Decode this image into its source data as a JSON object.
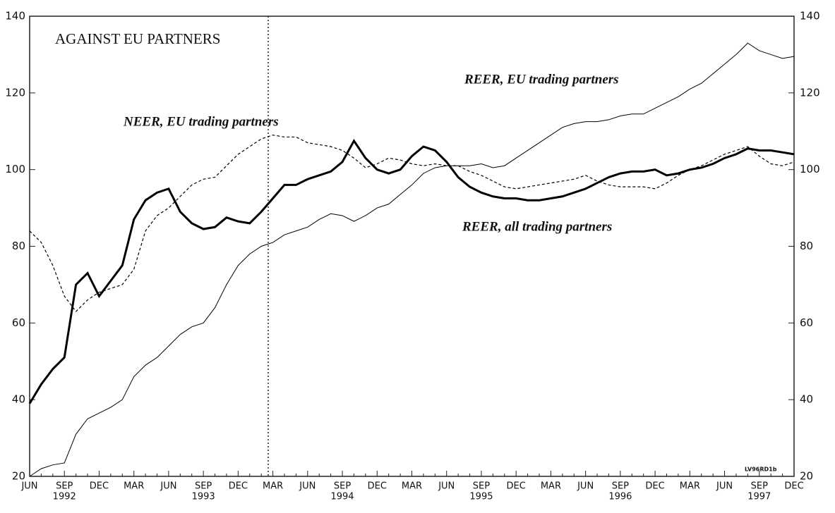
{
  "chart_data": {
    "type": "line",
    "title": "AGAINST EU PARTNERS",
    "annotations": [
      "REER, EU trading partners",
      "NEER, EU trading partners",
      "REER, all trading partners",
      "LV96RD1b"
    ],
    "categories": [
      "JUN",
      null,
      null,
      "SEP",
      null,
      null,
      "DEC",
      null,
      null,
      "MAR",
      null,
      null,
      "JUN",
      null,
      null,
      "SEP",
      null,
      null,
      "DEC",
      null,
      null,
      "MAR",
      null,
      null,
      "JUN",
      null,
      null,
      "SEP",
      null,
      null,
      "DEC",
      null,
      null,
      "MAR",
      null,
      null,
      "JUN",
      null,
      null,
      "SEP",
      null,
      null,
      "DEC",
      null,
      null,
      "MAR",
      null,
      null,
      "JUN",
      null,
      null,
      "SEP",
      null,
      null,
      "DEC",
      null,
      null,
      "MAR",
      null,
      null,
      "JUN",
      null,
      null,
      "SEP",
      null,
      null,
      "DEC"
    ],
    "years": [
      "1992",
      "1993",
      "1994",
      "1995",
      "1996",
      "1997"
    ],
    "series": [
      {
        "name": "REER, all trading partners",
        "color": "#000000",
        "width": 3,
        "dash": "solid",
        "values": [
          39,
          44,
          48,
          51,
          70,
          73,
          67,
          71,
          75,
          87,
          92,
          94,
          95,
          89,
          86,
          84.5,
          85,
          87.5,
          86.5,
          86,
          89,
          92.5,
          96,
          96,
          97.5,
          98.5,
          99.5,
          102,
          107.5,
          103,
          100,
          99,
          100,
          103.5,
          106,
          105,
          102,
          98,
          95.5,
          94,
          93,
          92.5,
          92.5,
          92,
          92,
          92.5,
          93,
          94,
          95,
          96.5,
          98,
          99,
          99.5,
          99.5,
          100,
          98.5,
          99,
          100,
          100.5,
          101.5,
          103,
          104,
          105.5,
          105,
          105,
          104.5,
          104
        ]
      },
      {
        "name": "NEER, EU trading partners",
        "color": "#000000",
        "width": 1.2,
        "dash": "dashed",
        "values": [
          84,
          81,
          75,
          67,
          63,
          66,
          68,
          69,
          70,
          74,
          84,
          88,
          90,
          93,
          96,
          97.5,
          98,
          101,
          104,
          106,
          108,
          109,
          108.5,
          108.5,
          107,
          106.5,
          106,
          105,
          103,
          100.5,
          101.5,
          103,
          102.5,
          101.5,
          101,
          101.5,
          101,
          101,
          99.5,
          98.5,
          97,
          95.5,
          95,
          95.5,
          96,
          96.5,
          97,
          97.5,
          98.5,
          97,
          96,
          95.5,
          95.5,
          95.5,
          95,
          96.5,
          98.5,
          100,
          101,
          102.5,
          104,
          105,
          106,
          103.5,
          101.5,
          101,
          102
        ]
      },
      {
        "name": "REER, EU trading partners",
        "color": "#000000",
        "width": 1,
        "dash": "solid",
        "values": [
          20,
          22,
          23,
          23.5,
          31,
          35,
          36.5,
          38,
          40,
          46,
          49,
          51,
          54,
          57,
          59,
          60,
          64,
          70,
          75,
          78,
          80,
          81,
          83,
          84,
          85,
          87,
          88.5,
          88,
          86.5,
          88,
          90,
          91,
          93.5,
          96,
          99,
          100.5,
          101,
          101,
          101,
          101.5,
          100.5,
          101,
          103,
          105,
          107,
          109,
          111,
          112,
          112.5,
          112.5,
          113,
          114,
          114.5,
          114.5,
          116,
          117.5,
          119,
          121,
          122.5,
          125,
          127.5,
          130,
          133,
          131,
          130,
          129,
          129.5
        ]
      }
    ],
    "ylim": [
      20,
      140
    ],
    "yticks": [
      20,
      40,
      60,
      80,
      100,
      120,
      140
    ],
    "y2lim": [
      20,
      140
    ],
    "y2ticks": [
      20,
      40,
      60,
      80,
      100,
      120,
      140
    ]
  }
}
